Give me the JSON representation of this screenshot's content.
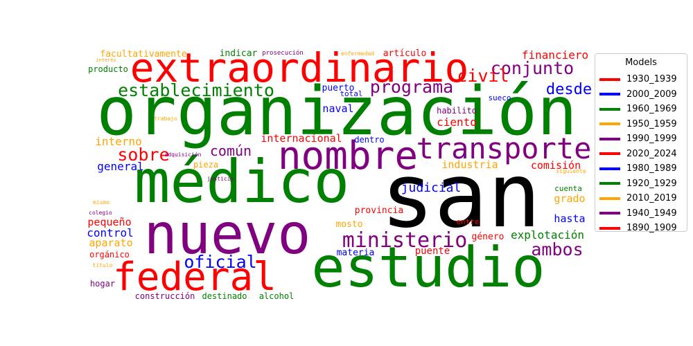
{
  "chart_data": {
    "type": "wordcloud",
    "legend": {
      "title": "Models",
      "placement": "right",
      "items": [
        {
          "label": "1930_1939",
          "color": "#ff0000"
        },
        {
          "label": "2000_2009",
          "color": "#0000ff"
        },
        {
          "label": "1960_1969",
          "color": "#008000"
        },
        {
          "label": "1950_1959",
          "color": "#ffa500"
        },
        {
          "label": "1990_1999",
          "color": "#800080"
        },
        {
          "label": "2020_2024",
          "color": "#ff0000"
        },
        {
          "label": "1980_1989",
          "color": "#0000ff"
        },
        {
          "label": "1920_1929",
          "color": "#008000"
        },
        {
          "label": "2010_2019",
          "color": "#ffa500"
        },
        {
          "label": "1940_1949",
          "color": "#800080"
        },
        {
          "label": "1890_1909",
          "color": "#ff0000"
        }
      ]
    },
    "words": [
      {
        "text": "san",
        "color": "#000000"
      },
      {
        "text": "organización",
        "color": "#008000"
      },
      {
        "text": "médico",
        "color": "#008000"
      },
      {
        "text": "estudio",
        "color": "#008000"
      },
      {
        "text": "nuevo",
        "color": "#800080"
      },
      {
        "text": "extraordinario",
        "color": "#ff0000"
      },
      {
        "text": "nombre",
        "color": "#800080"
      },
      {
        "text": "transporte",
        "color": "#800080"
      },
      {
        "text": "federal",
        "color": "#ff0000"
      },
      {
        "text": "establecimiento",
        "color": "#008000"
      },
      {
        "text": "programa",
        "color": "#800080"
      },
      {
        "text": "conjunto",
        "color": "#800080"
      },
      {
        "text": "ministerio",
        "color": "#800080"
      },
      {
        "text": "civil",
        "color": "#ff0000"
      },
      {
        "text": "oficial",
        "color": "#0000ff"
      },
      {
        "text": "desde",
        "color": "#0000ff"
      },
      {
        "text": "sobre",
        "color": "#ff0000"
      },
      {
        "text": "ambos",
        "color": "#800080"
      },
      {
        "text": "común",
        "color": "#800080"
      },
      {
        "text": "financiero",
        "color": "#ff0000"
      },
      {
        "text": "judicial",
        "color": "#0000ff"
      },
      {
        "text": "explotación",
        "color": "#008000"
      },
      {
        "text": "internacional",
        "color": "#ff0000"
      },
      {
        "text": "interno",
        "color": "#ffa500"
      },
      {
        "text": "general",
        "color": "#0000ff"
      },
      {
        "text": "industria",
        "color": "#ffa500"
      },
      {
        "text": "ciento",
        "color": "#ff0000"
      },
      {
        "text": "naval",
        "color": "#0000ff"
      },
      {
        "text": "comisión",
        "color": "#ff0000"
      },
      {
        "text": "pequeño",
        "color": "#ff0000"
      },
      {
        "text": "control",
        "color": "#0000ff"
      },
      {
        "text": "aparato",
        "color": "#ffa500"
      },
      {
        "text": "grado",
        "color": "#ffa500"
      },
      {
        "text": "hasta",
        "color": "#0000ff"
      },
      {
        "text": "facultativamente",
        "color": "#ffa500"
      },
      {
        "text": "indicar",
        "color": "#008000"
      },
      {
        "text": "artículo",
        "color": "#ff0000"
      },
      {
        "text": "puerto",
        "color": "#0000ff"
      },
      {
        "text": "género",
        "color": "#ff0000"
      },
      {
        "text": "puente",
        "color": "#ff0000"
      },
      {
        "text": "materia",
        "color": "#0000ff"
      },
      {
        "text": "provincia",
        "color": "#ff0000"
      },
      {
        "text": "mosto",
        "color": "#ffa500"
      },
      {
        "text": "producto",
        "color": "#008000"
      },
      {
        "text": "dentro",
        "color": "#0000ff"
      },
      {
        "text": "pieza",
        "color": "#ffa500"
      },
      {
        "text": "habilito",
        "color": "#800080"
      },
      {
        "text": "orgánico",
        "color": "#ff0000"
      },
      {
        "text": "hogar",
        "color": "#800080"
      },
      {
        "text": "construcción",
        "color": "#800080"
      },
      {
        "text": "destinado",
        "color": "#008000"
      },
      {
        "text": "alcohol",
        "color": "#008000"
      },
      {
        "text": "entre",
        "color": "#ff0000"
      },
      {
        "text": "cuenta",
        "color": "#008000"
      },
      {
        "text": "total",
        "color": "#0000ff"
      },
      {
        "text": "sueco",
        "color": "#0000ff"
      },
      {
        "text": "prosecución",
        "color": "#800080"
      },
      {
        "text": "enfermedad",
        "color": "#ffa500"
      },
      {
        "text": "interés",
        "color": "#ffa500"
      },
      {
        "text": "trabajo",
        "color": "#ffa500"
      },
      {
        "text": "adquisición",
        "color": "#800080"
      },
      {
        "text": "justicia",
        "color": "#800080"
      },
      {
        "text": "siguiente",
        "color": "#ffa500"
      },
      {
        "text": "mismo",
        "color": "#ffa500"
      },
      {
        "text": "colegio",
        "color": "#800080"
      },
      {
        "text": "título",
        "color": "#ffa500"
      }
    ]
  }
}
